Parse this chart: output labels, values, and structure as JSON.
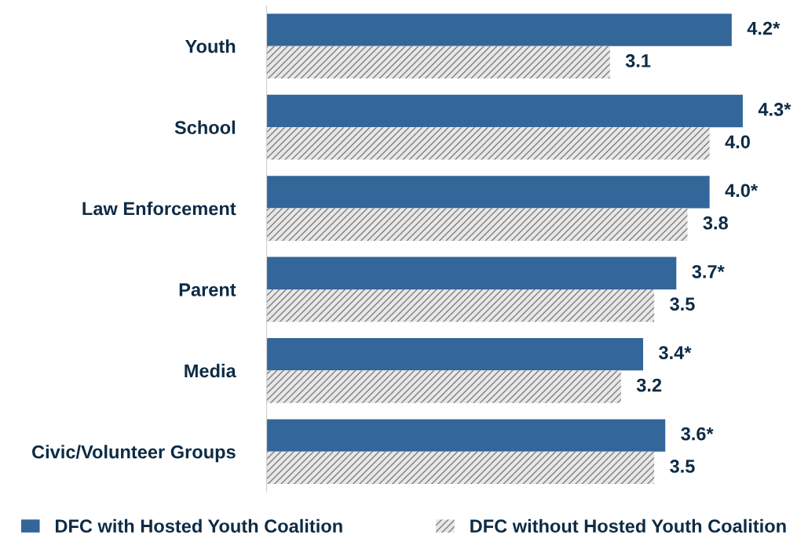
{
  "chart_data": {
    "type": "bar",
    "orientation": "horizontal",
    "categories": [
      "Youth",
      "School",
      "Law Enforcement",
      "Parent",
      "Media",
      "Civic/Volunteer Groups"
    ],
    "series": [
      {
        "name": "DFC with Hosted Youth Coalition",
        "color": "#336699",
        "values": [
          4.2,
          4.3,
          4.0,
          3.7,
          3.4,
          3.6
        ],
        "value_labels": [
          "4.2*",
          "4.3*",
          "4.0*",
          "3.7*",
          "3.4*",
          "3.6*"
        ]
      },
      {
        "name": "DFC without Hosted Youth Coalition",
        "color": "#7f7f7f",
        "values": [
          3.1,
          4.0,
          3.8,
          3.5,
          3.2,
          3.5
        ],
        "value_labels": [
          "3.1",
          "4.0",
          "3.8",
          "3.5",
          "3.2",
          "3.5"
        ]
      }
    ],
    "grid": false,
    "legend": "bottom"
  }
}
